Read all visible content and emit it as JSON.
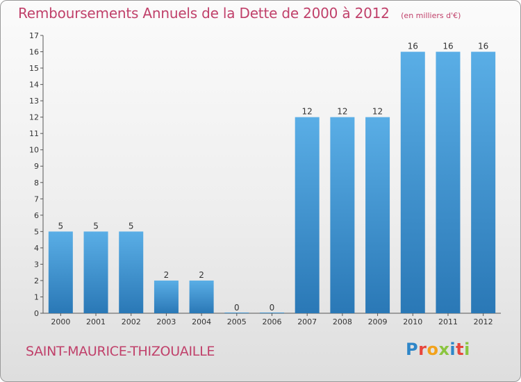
{
  "header": {
    "title": "Remboursements Annuels de la Dette de 2000 à 2012",
    "subtitle": "(en milliers d'€)"
  },
  "footer": {
    "commune": "SAINT-MAURICE-THIZOUAILLE",
    "logo_text": "Proxiti"
  },
  "colors": {
    "title": "#c0406a",
    "bar_top": "#5aaee6",
    "bar_bottom": "#2a78b6"
  },
  "chart_data": {
    "type": "bar",
    "title": "Remboursements Annuels de la Dette de 2000 à 2012",
    "subtitle": "(en milliers d'€)",
    "categories": [
      "2000",
      "2001",
      "2002",
      "2003",
      "2004",
      "2005",
      "2006",
      "2007",
      "2008",
      "2009",
      "2010",
      "2011",
      "2012"
    ],
    "values": [
      5,
      5,
      5,
      2,
      2,
      0,
      0,
      12,
      12,
      12,
      16,
      16,
      16
    ],
    "ylim": [
      0,
      17
    ],
    "yticks": [
      0,
      1,
      2,
      3,
      4,
      5,
      6,
      7,
      8,
      9,
      10,
      11,
      12,
      13,
      14,
      15,
      16,
      17
    ],
    "grid": false,
    "legend": "none"
  }
}
